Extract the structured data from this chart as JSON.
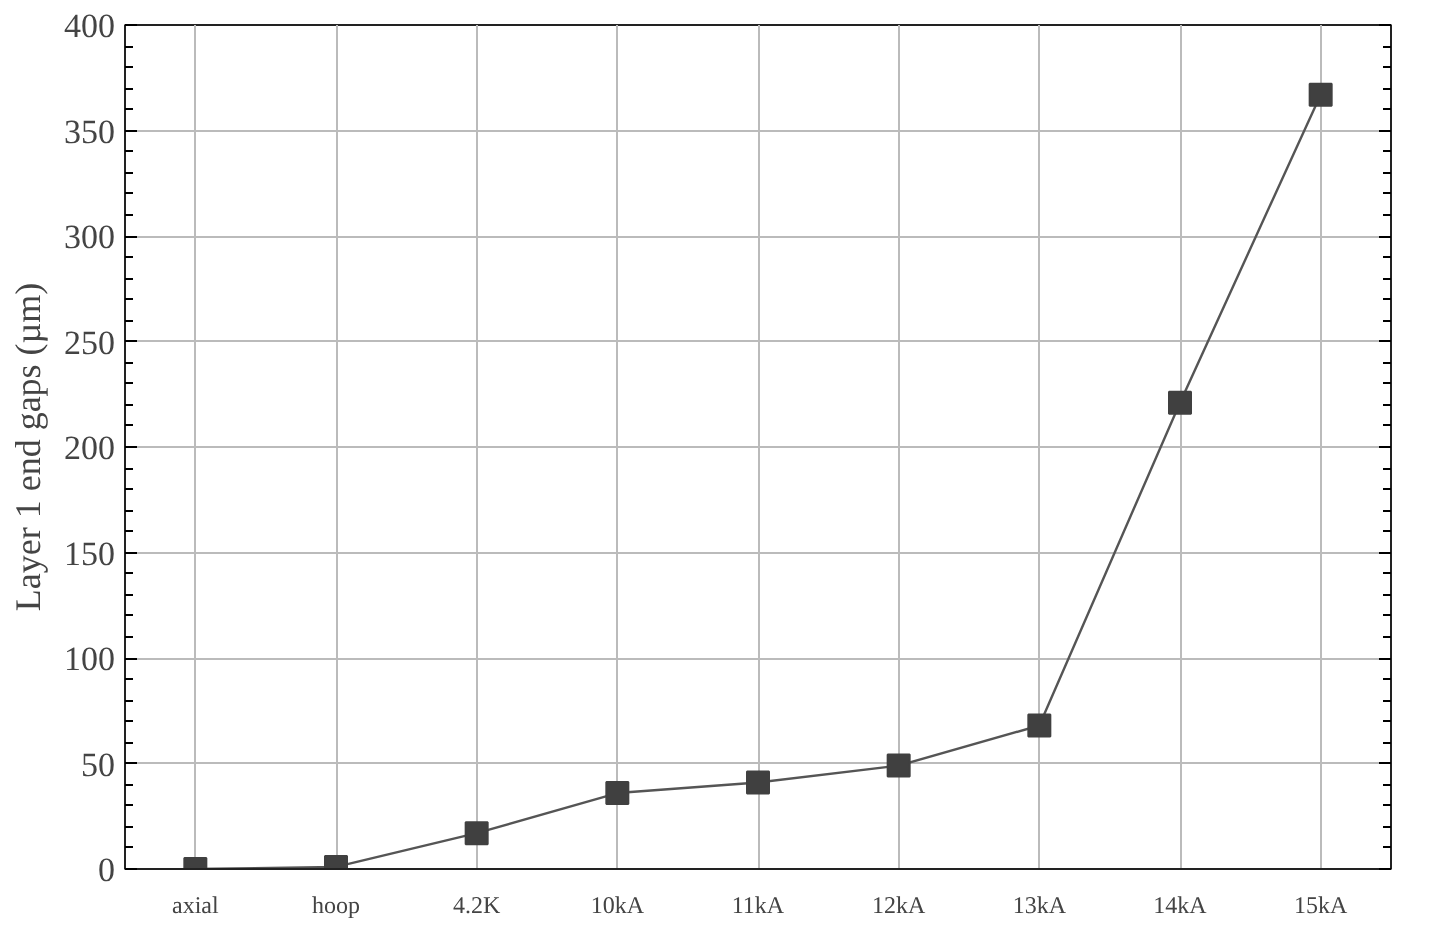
{
  "chart_data": {
    "type": "line",
    "ylabel": "Layer 1 end gaps (µm)",
    "categories": [
      "axial",
      "hoop",
      "4.2K",
      "10kA",
      "11kA",
      "12kA",
      "13kA",
      "14kA",
      "15kA"
    ],
    "values": [
      0,
      1,
      17,
      36,
      41,
      49,
      68,
      221,
      367
    ],
    "color": "#404040",
    "marker": "square",
    "line_style": "solid",
    "grid": true,
    "ylim": [
      0,
      400
    ],
    "yticks": [
      0,
      50,
      100,
      150,
      200,
      250,
      300,
      350,
      400
    ]
  }
}
